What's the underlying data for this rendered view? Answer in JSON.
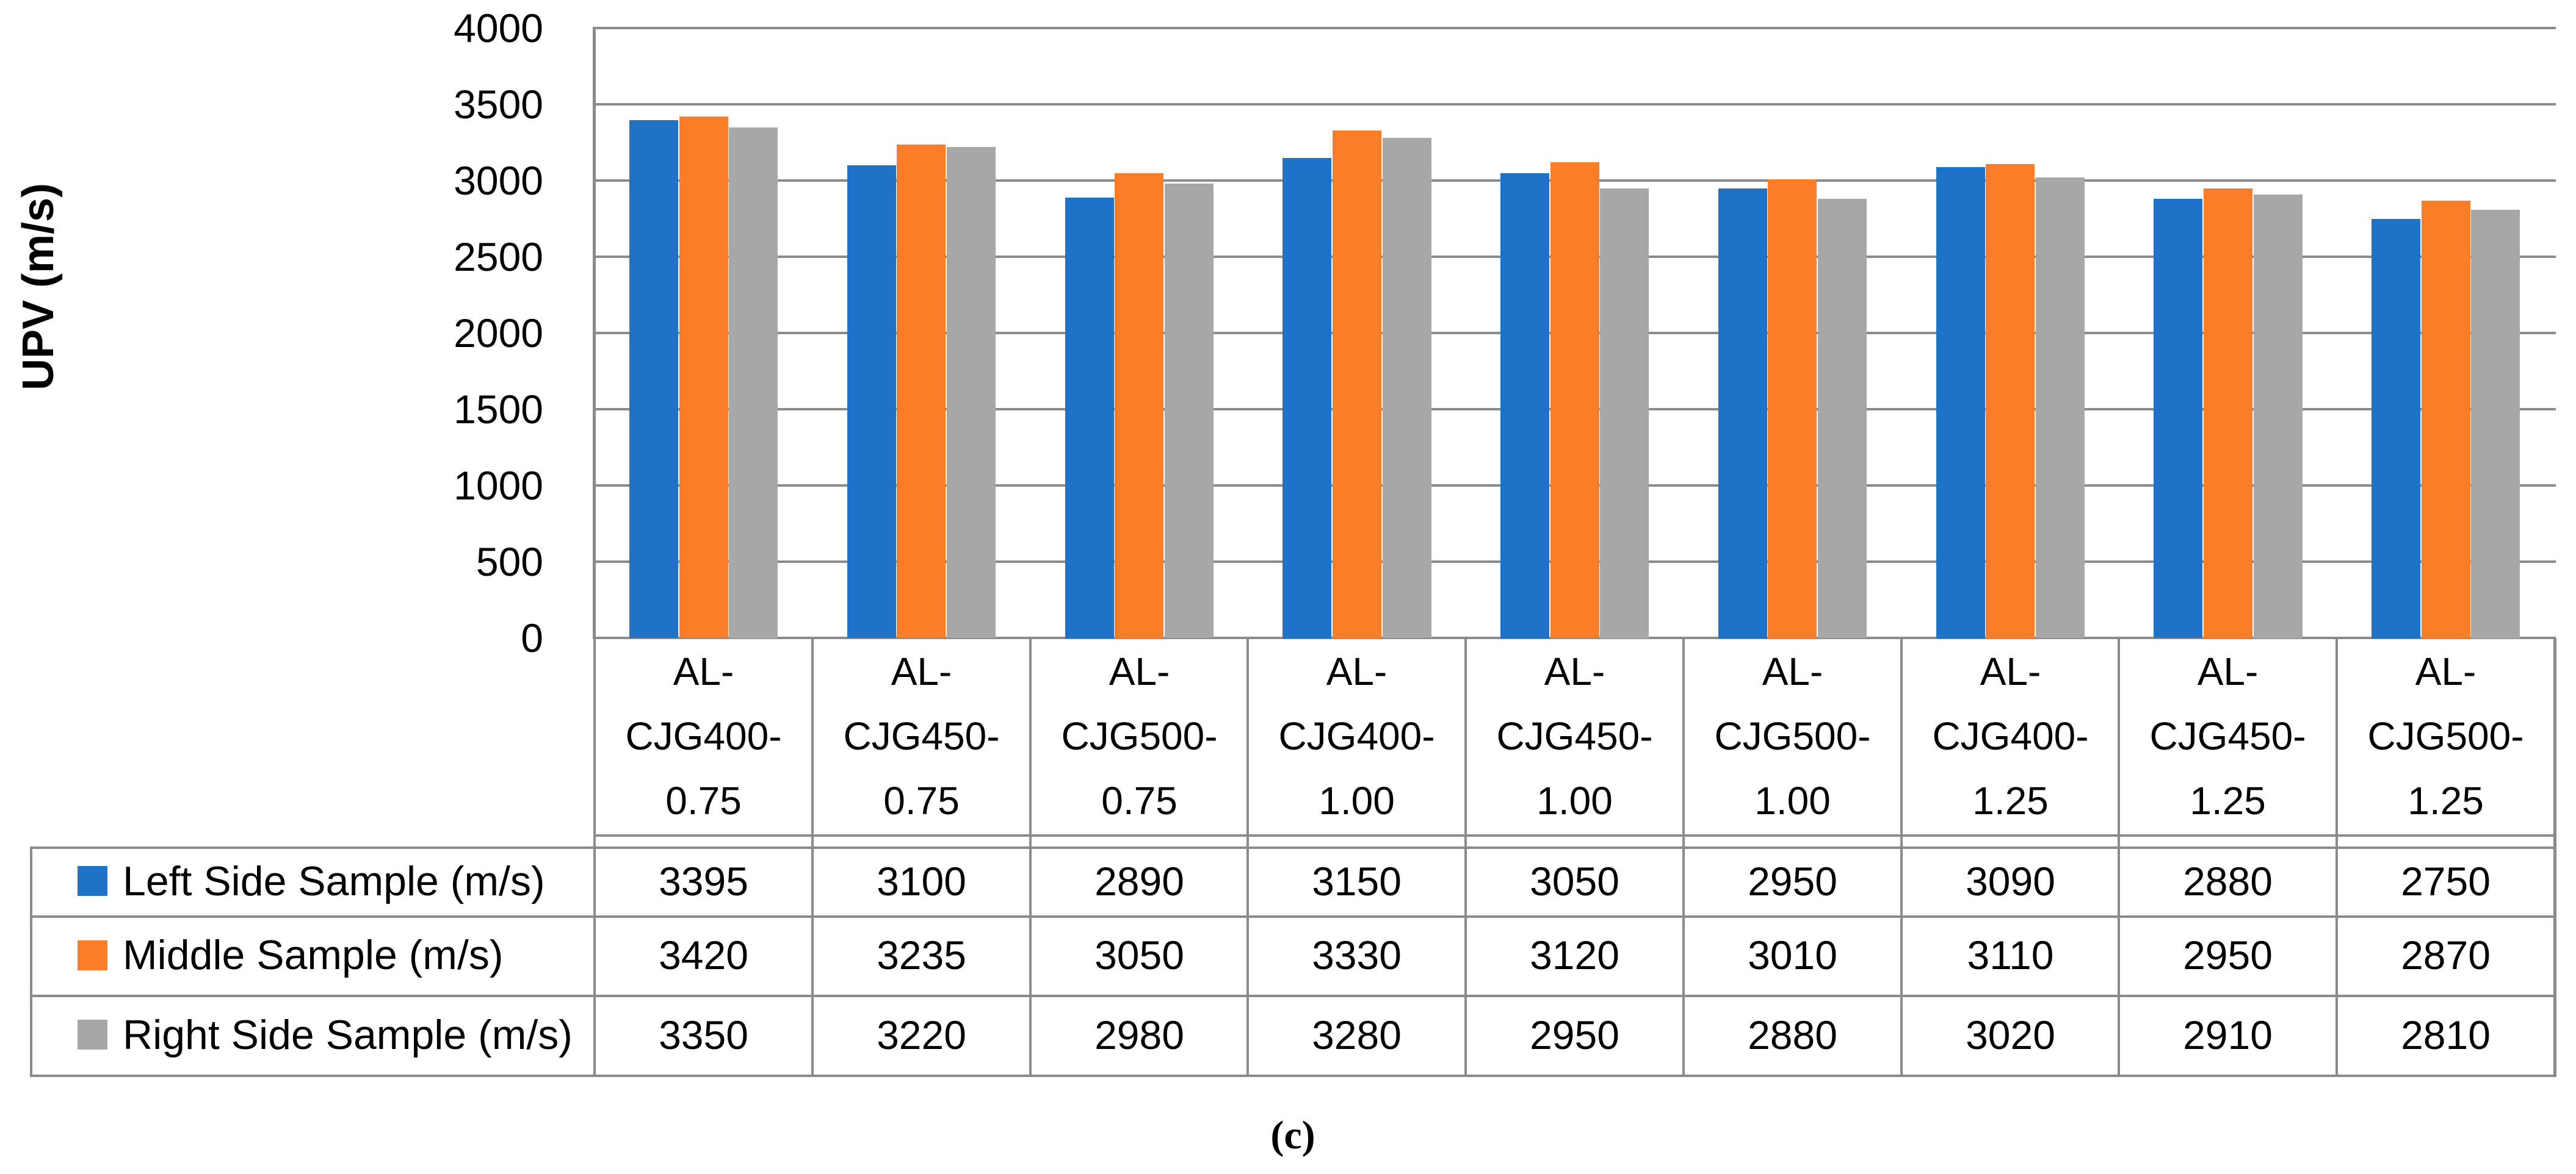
{
  "figure": {
    "y_axis_title": "UPV (m/s)",
    "caption": "(c)"
  },
  "chart_data": {
    "type": "bar",
    "title": "",
    "xlabel": "",
    "ylabel": "UPV (m/s)",
    "ylim": [
      0,
      4000
    ],
    "ytick_step": 500,
    "yticks": [
      4000,
      3500,
      3000,
      2500,
      2000,
      1500,
      1000,
      500,
      0
    ],
    "grid": true,
    "legend_position": "table-left-column",
    "categories": [
      "AL-CJG400-0.75",
      "AL-CJG450-0.75",
      "AL-CJG500-0.75",
      "AL-CJG400-1.00",
      "AL-CJG450-1.00",
      "AL-CJG500-1.00",
      "AL-CJG400-1.25",
      "AL-CJG450-1.25",
      "AL-CJG500-1.25"
    ],
    "series": [
      {
        "name": "Left Side Sample (m/s)",
        "color": "#1E73C8",
        "values": [
          3395,
          3100,
          2890,
          3150,
          3050,
          2950,
          3090,
          2880,
          2750
        ]
      },
      {
        "name": "Middle Sample (m/s)",
        "color": "#FC7D27",
        "values": [
          3420,
          3235,
          3050,
          3330,
          3120,
          3010,
          3110,
          2950,
          2870
        ]
      },
      {
        "name": "Right Side Sample (m/s)",
        "color": "#A7A7A7",
        "values": [
          3350,
          3220,
          2980,
          3280,
          2950,
          2880,
          3020,
          2910,
          2810
        ]
      }
    ],
    "colors": {
      "grid_line": "#8B8B8B",
      "table_line": "#8B8B8B",
      "text": "#000000",
      "background": "#FFFFFF"
    }
  }
}
